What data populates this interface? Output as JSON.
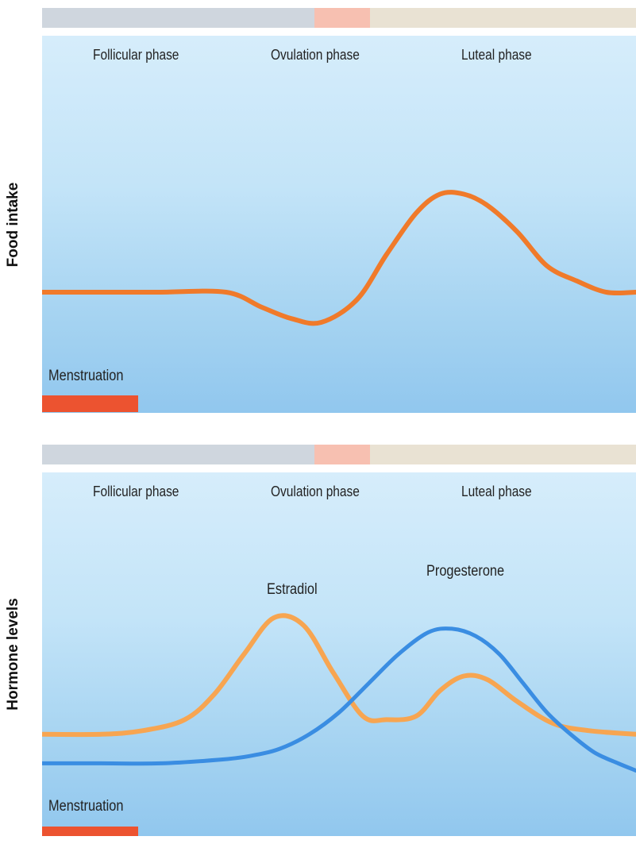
{
  "colors": {
    "follicular": "#cfd6de",
    "ovulation": "#f7c0b1",
    "luteal": "#e9e2d3",
    "menstruation": "#ec5330",
    "food": "#f07a2a",
    "estradiol": "#f7a551",
    "progesterone": "#3a8de2"
  },
  "phases": [
    "Follicular phase",
    "Ovulation phase",
    "Luteal phase"
  ],
  "menstruation_label": "Menstruation",
  "chart_data": [
    {
      "type": "line",
      "ylabel": "Food intake",
      "x_range": [
        0,
        100
      ],
      "y_range": [
        0,
        100
      ],
      "phase_bounds": [
        0,
        46,
        55,
        100
      ],
      "menstruation_range": [
        0,
        16
      ],
      "series": [
        {
          "label": "",
          "color": "#f07a2a",
          "points": [
            [
              0,
              32
            ],
            [
              10,
              32
            ],
            [
              20,
              32
            ],
            [
              31,
              32
            ],
            [
              37,
              28
            ],
            [
              42,
              25
            ],
            [
              47,
              24
            ],
            [
              53,
              30
            ],
            [
              58,
              42
            ],
            [
              63,
              53
            ],
            [
              67,
              58
            ],
            [
              71,
              58
            ],
            [
              75,
              55
            ],
            [
              80,
              48
            ],
            [
              85,
              39
            ],
            [
              90,
              35
            ],
            [
              95,
              32
            ],
            [
              100,
              32
            ]
          ]
        }
      ]
    },
    {
      "type": "line",
      "ylabel": "Hormone levels",
      "x_range": [
        0,
        100
      ],
      "y_range": [
        0,
        100
      ],
      "phase_bounds": [
        0,
        46,
        55,
        100
      ],
      "menstruation_range": [
        0,
        16
      ],
      "series": [
        {
          "label": "Estradiol",
          "color": "#f7a551",
          "points": [
            [
              0,
              28
            ],
            [
              10,
              28
            ],
            [
              17,
              29
            ],
            [
              24,
              32
            ],
            [
              29,
              39
            ],
            [
              34,
              50
            ],
            [
              39,
              60
            ],
            [
              44,
              58
            ],
            [
              49,
              45
            ],
            [
              54,
              33
            ],
            [
              58,
              32
            ],
            [
              63,
              33
            ],
            [
              67,
              40
            ],
            [
              71,
              44
            ],
            [
              75,
              43
            ],
            [
              80,
              37
            ],
            [
              86,
              31
            ],
            [
              92,
              29
            ],
            [
              100,
              28
            ]
          ]
        },
        {
          "label": "Progesterone",
          "color": "#3a8de2",
          "points": [
            [
              0,
              20
            ],
            [
              10,
              20
            ],
            [
              20,
              20
            ],
            [
              30,
              21
            ],
            [
              35,
              22
            ],
            [
              40,
              24
            ],
            [
              45,
              28
            ],
            [
              50,
              34
            ],
            [
              55,
              42
            ],
            [
              60,
              50
            ],
            [
              65,
              56
            ],
            [
              69,
              57
            ],
            [
              73,
              55
            ],
            [
              77,
              50
            ],
            [
              81,
              42
            ],
            [
              85,
              34
            ],
            [
              89,
              28
            ],
            [
              93,
              23
            ],
            [
              97,
              20
            ],
            [
              100,
              18
            ]
          ]
        }
      ]
    }
  ]
}
